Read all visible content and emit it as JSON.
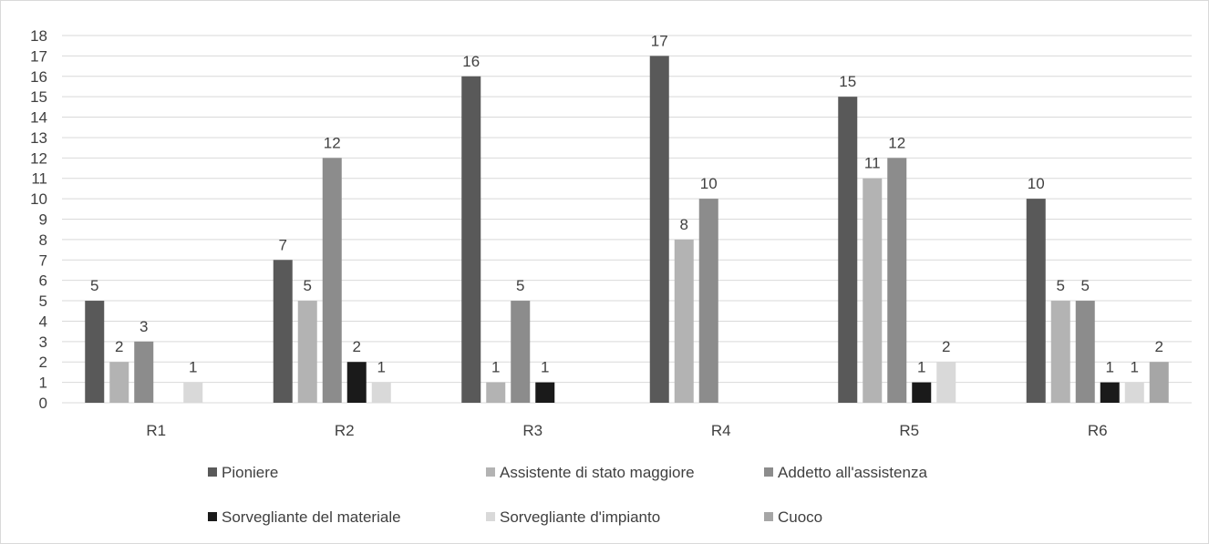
{
  "chart_data": {
    "type": "bar",
    "categories": [
      "R1",
      "R2",
      "R3",
      "R4",
      "R5",
      "R6"
    ],
    "ylim": [
      0,
      18
    ],
    "yticks": [
      0,
      1,
      2,
      3,
      4,
      5,
      6,
      7,
      8,
      9,
      10,
      11,
      12,
      13,
      14,
      15,
      16,
      17,
      18
    ],
    "grid": true,
    "legend_position": "bottom",
    "series": [
      {
        "name": "Pioniere",
        "color": "#595959",
        "values": [
          5,
          7,
          16,
          17,
          15,
          10
        ]
      },
      {
        "name": "Assistente di stato maggiore",
        "color": "#b3b3b3",
        "values": [
          2,
          5,
          1,
          8,
          11,
          5
        ]
      },
      {
        "name": "Addetto all'assistenza",
        "color": "#8c8c8c",
        "values": [
          3,
          12,
          5,
          10,
          12,
          5
        ]
      },
      {
        "name": "Sorvegliante del materiale",
        "color": "#1a1a1a",
        "values": [
          0,
          2,
          1,
          0,
          1,
          1
        ]
      },
      {
        "name": "Sorvegliante d'impianto",
        "color": "#d9d9d9",
        "values": [
          1,
          1,
          0,
          0,
          2,
          1
        ]
      },
      {
        "name": "Cuoco",
        "color": "#a6a6a6",
        "values": [
          0,
          0,
          0,
          0,
          0,
          2
        ]
      }
    ]
  }
}
